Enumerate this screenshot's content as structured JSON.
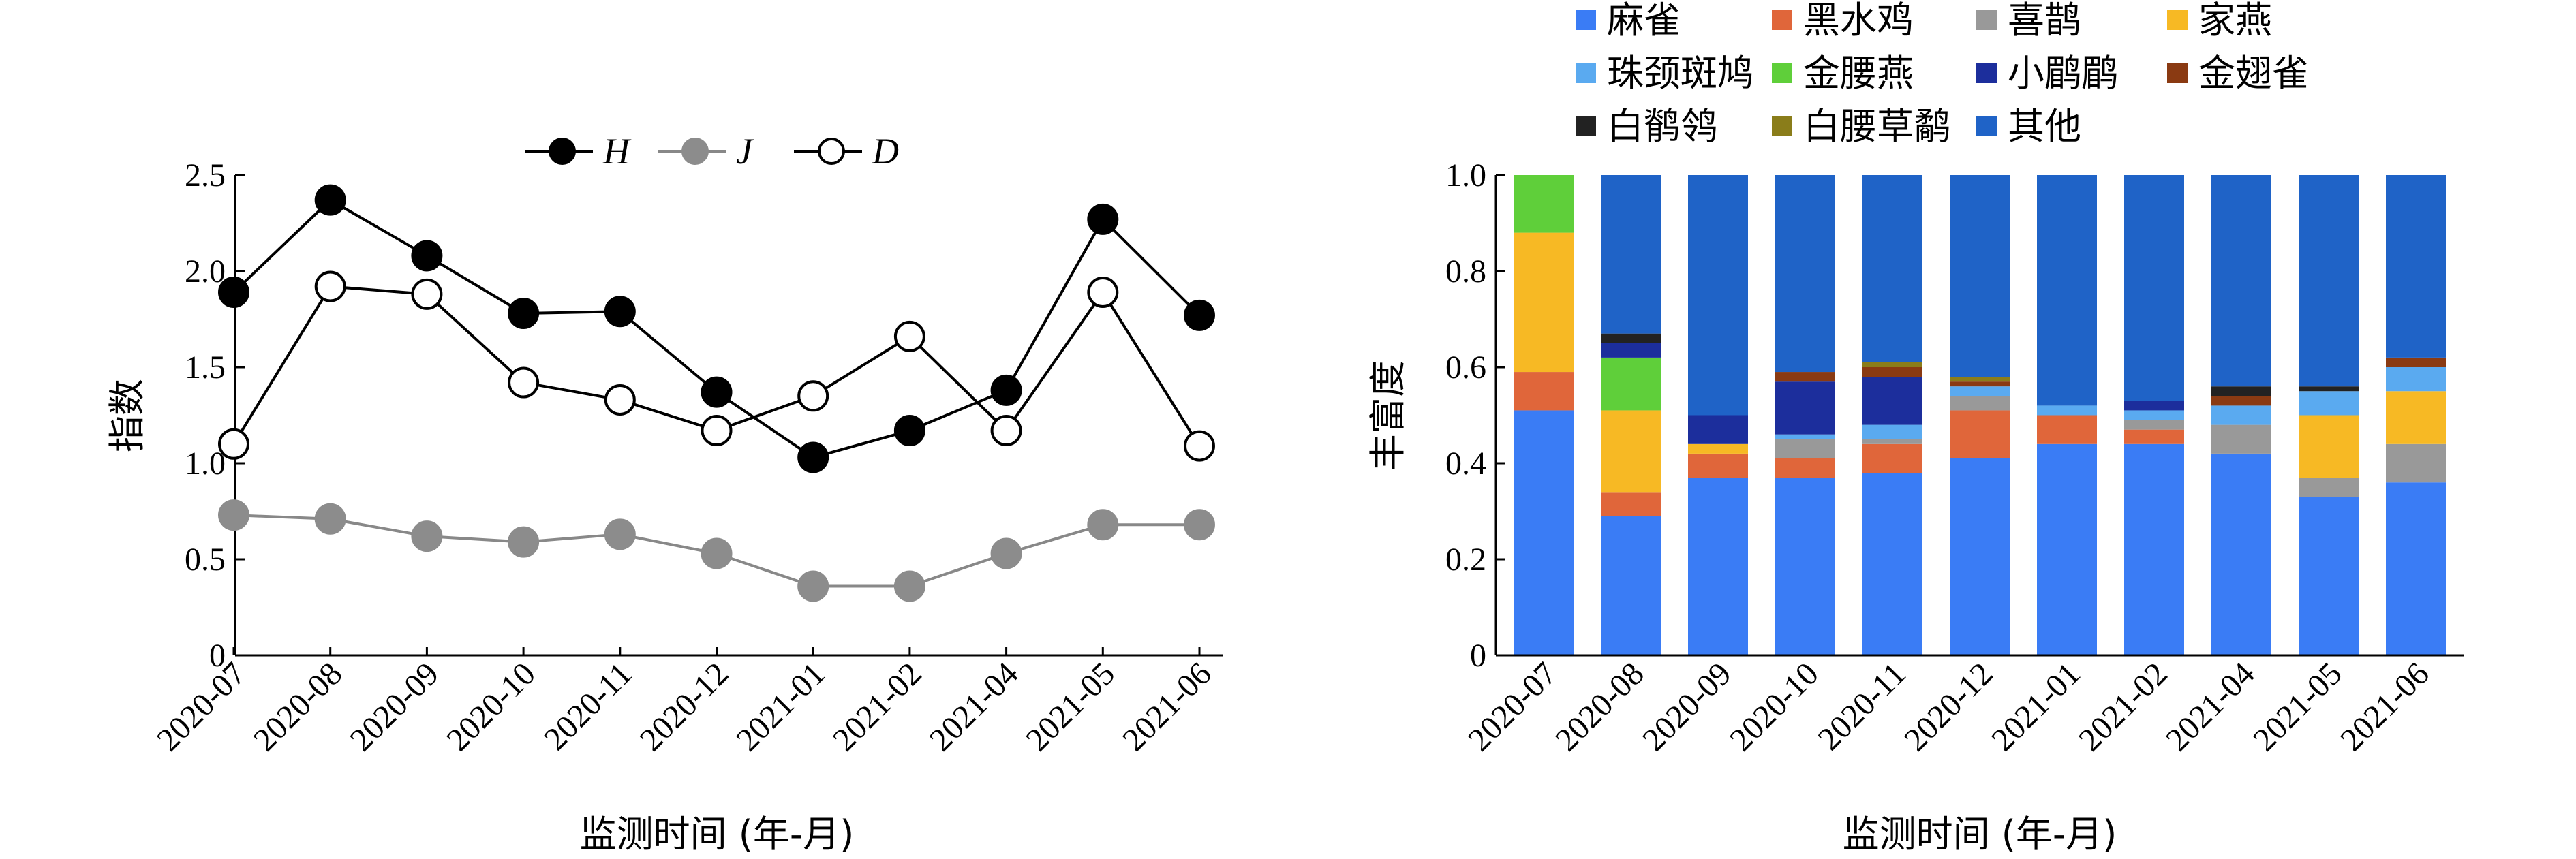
{
  "chart_data": [
    {
      "type": "line",
      "ylabel": "指数",
      "xlabel": "监测时间 (年-月)",
      "ylim": [
        0,
        2.5
      ],
      "yticks": [
        "0",
        "0.5",
        "1.0",
        "1.5",
        "2.0",
        "2.5"
      ],
      "categories": [
        "2020-07",
        "2020-08",
        "2020-09",
        "2020-10",
        "2020-11",
        "2020-12",
        "2021-01",
        "2021-02",
        "2021-04",
        "2021-05",
        "2021-06"
      ],
      "legend_position": "top",
      "series": [
        {
          "name": "H",
          "marker": "filled-black",
          "color": "#000000",
          "values": [
            1.89,
            2.37,
            2.08,
            1.78,
            1.79,
            1.37,
            1.03,
            1.17,
            1.38,
            2.27,
            1.77
          ]
        },
        {
          "name": "J",
          "marker": "filled-gray",
          "color": "#888888",
          "values": [
            0.73,
            0.71,
            0.62,
            0.59,
            0.63,
            0.53,
            0.36,
            0.36,
            0.53,
            0.68,
            0.68
          ]
        },
        {
          "name": "D",
          "marker": "open-circle",
          "color": "#000000",
          "values": [
            1.1,
            1.92,
            1.88,
            1.42,
            1.33,
            1.17,
            1.35,
            1.66,
            1.17,
            1.89,
            1.09
          ]
        }
      ]
    },
    {
      "type": "bar",
      "stacked": true,
      "ylabel": "丰富度",
      "xlabel": "监测时间 (年-月)",
      "ylim": [
        0,
        1.0
      ],
      "yticks": [
        "0",
        "0.2",
        "0.4",
        "0.6",
        "0.8",
        "1.0"
      ],
      "categories": [
        "2020-07",
        "2020-08",
        "2020-09",
        "2020-10",
        "2020-11",
        "2020-12",
        "2021-01",
        "2021-02",
        "2021-04",
        "2021-05",
        "2021-06"
      ],
      "legend_position": "top",
      "series": [
        {
          "name": "麻雀",
          "color": "#3a7cf5",
          "values": [
            0.51,
            0.29,
            0.37,
            0.37,
            0.38,
            0.41,
            0.44,
            0.44,
            0.42,
            0.33,
            0.36
          ]
        },
        {
          "name": "黑水鸡",
          "color": "#e0663a",
          "values": [
            0.08,
            0.05,
            0.05,
            0.04,
            0.06,
            0.1,
            0.06,
            0.03,
            0.0,
            0.0,
            0.0
          ]
        },
        {
          "name": "喜鹊",
          "color": "#999999",
          "values": [
            0.0,
            0.0,
            0.0,
            0.04,
            0.01,
            0.03,
            0.0,
            0.02,
            0.06,
            0.04,
            0.08
          ]
        },
        {
          "name": "家燕",
          "color": "#f7b924",
          "values": [
            0.29,
            0.17,
            0.02,
            0.0,
            0.0,
            0.0,
            0.0,
            0.0,
            0.0,
            0.13,
            0.11
          ]
        },
        {
          "name": "珠颈斑鸠",
          "color": "#5aaaf0",
          "values": [
            0.0,
            0.0,
            0.0,
            0.01,
            0.03,
            0.02,
            0.02,
            0.02,
            0.04,
            0.05,
            0.05
          ]
        },
        {
          "name": "金腰燕",
          "color": "#5fcf3a",
          "values": [
            0.12,
            0.11,
            0.0,
            0.0,
            0.0,
            0.0,
            0.0,
            0.0,
            0.0,
            0.0,
            0.0
          ]
        },
        {
          "name": "小鹛鹛",
          "color": "#1c2e9c",
          "values": [
            0.0,
            0.03,
            0.06,
            0.11,
            0.1,
            0.0,
            0.0,
            0.02,
            0.0,
            0.0,
            0.0
          ]
        },
        {
          "name": "金翅雀",
          "color": "#8a3a12",
          "values": [
            0.0,
            0.0,
            0.0,
            0.02,
            0.02,
            0.01,
            0.0,
            0.0,
            0.02,
            0.0,
            0.02
          ]
        },
        {
          "name": "白鹡鸰",
          "color": "#222222",
          "values": [
            0.0,
            0.02,
            0.0,
            0.0,
            0.0,
            0.0,
            0.0,
            0.0,
            0.02,
            0.01,
            0.0
          ]
        },
        {
          "name": "白腰草鹬",
          "color": "#8a7d1a",
          "values": [
            0.0,
            0.0,
            0.0,
            0.0,
            0.01,
            0.01,
            0.0,
            0.0,
            0.0,
            0.0,
            0.0
          ]
        },
        {
          "name": "其他",
          "color": "#1f63c7",
          "values": [
            0.0,
            0.33,
            0.5,
            0.41,
            0.39,
            0.42,
            0.48,
            0.47,
            0.44,
            0.44,
            0.38
          ]
        }
      ]
    }
  ]
}
